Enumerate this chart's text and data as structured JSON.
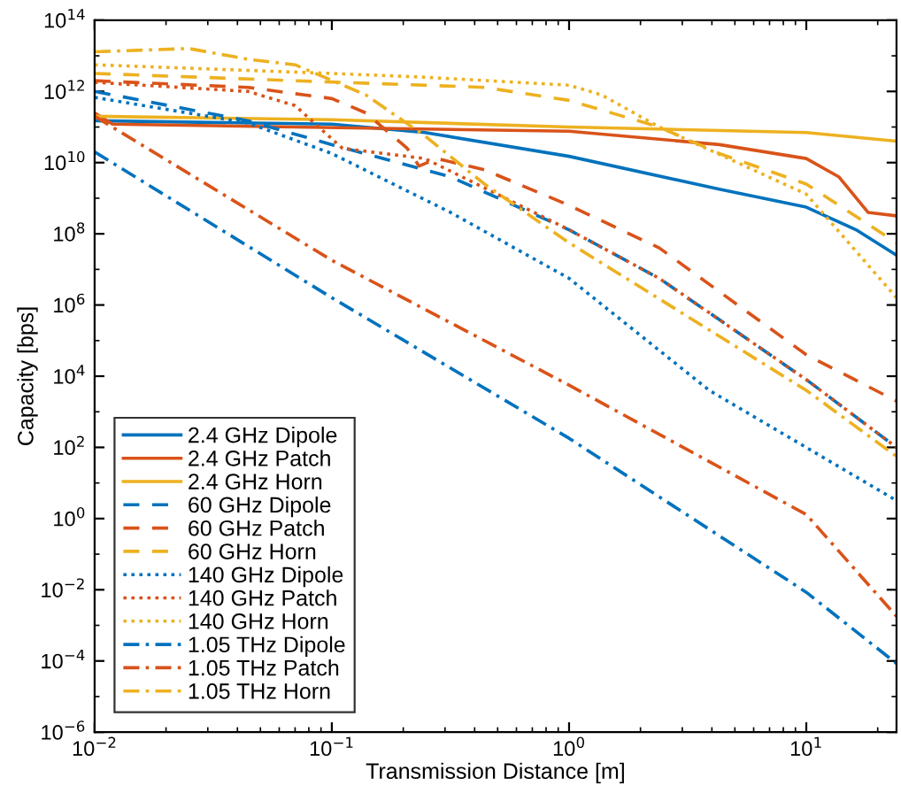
{
  "chart_data": {
    "type": "line",
    "xlabel": "Transmission Distance [m]",
    "ylabel": "Capacity [bps]",
    "log": "xy",
    "grid": false,
    "legend": "bottom left",
    "marker": "none",
    "xlim": [
      0.01,
      24
    ],
    "ylim": [
      1e-06,
      100000000000000.0
    ],
    "xticks": [
      {
        "value": 0.01,
        "label": "10$^{−2}$"
      },
      {
        "value": 0.1,
        "label": "10$^{−1}$"
      },
      {
        "value": 1,
        "label": "10$^{0}$"
      },
      {
        "value": 10,
        "label": "10$^{1}$"
      }
    ],
    "yticks": [
      {
        "value": 1e-06,
        "label": "10$^{−6}$"
      },
      {
        "value": 0.0001,
        "label": "10$^{−4}$"
      },
      {
        "value": 0.01,
        "label": "10$^{−2}$"
      },
      {
        "value": 1,
        "label": "10$^{0}$"
      },
      {
        "value": 100,
        "label": "10$^{2}$"
      },
      {
        "value": 10000.0,
        "label": "10$^{4}$"
      },
      {
        "value": 1000000.0,
        "label": "10$^{6}$"
      },
      {
        "value": 100000000.0,
        "label": "10$^{8}$"
      },
      {
        "value": 10000000000.0,
        "label": "10$^{10}$"
      },
      {
        "value": 1000000000000.0,
        "label": "10$^{12}$"
      },
      {
        "value": 100000000000000.0,
        "label": "10$^{14}$"
      }
    ],
    "series": [
      {
        "name": "2.4 GHz Dipole",
        "color": "#0072bd",
        "line_style": "solid",
        "x": [
          0.01,
          0.1,
          0.247,
          1,
          4.3,
          10,
          16.2,
          24
        ],
        "values": [
          150000000000.0,
          120000000000.0,
          70000000000.0,
          15000000000.0,
          1800000000.0,
          560000000.0,
          130000000.0,
          25000000.0
        ]
      },
      {
        "name": "2.4 GHz Patch",
        "color": "#d95319",
        "line_style": "solid",
        "x": [
          0.01,
          0.0119,
          1,
          4.3,
          10,
          13.7,
          18.2,
          24
        ],
        "values": [
          250000000000.0,
          120000000000.0,
          76000000000.0,
          32000000000.0,
          13000000000.0,
          4000000000.0,
          400000000.0,
          320000000.0
        ]
      },
      {
        "name": "2.4 GHz Horn",
        "color": "#edb120",
        "line_style": "solid",
        "x": [
          0.01,
          0.1,
          1,
          10,
          24
        ],
        "values": [
          200000000000.0,
          160000000000.0,
          100000000000.0,
          70000000000.0,
          40000000000.0
        ]
      },
      {
        "name": "60 GHz Dipole",
        "color": "#0072bd",
        "line_style": "dashed",
        "x": [
          0.01,
          0.0443,
          0.1,
          0.316,
          1,
          2.4,
          10,
          24
        ],
        "values": [
          1000000000000.0,
          150000000000.0,
          32000000000.0,
          4000000000.0,
          130000000.0,
          5600000.0,
          8000.0,
          100
        ]
      },
      {
        "name": "60 GHz Patch",
        "color": "#d95319",
        "line_style": "dashed",
        "x": [
          0.01,
          0.0443,
          0.1,
          0.139,
          0.208,
          0.233,
          0.277,
          0.44,
          1,
          2.4,
          10,
          24
        ],
        "values": [
          2000000000000.0,
          1300000000000.0,
          630000000000.0,
          250000000000.0,
          25000000000.0,
          8000000000.0,
          13000000000.0,
          6300000000.0,
          630000000.0,
          40000000.0,
          40000.0,
          2000.0
        ]
      },
      {
        "name": "60 GHz Horn",
        "color": "#edb120",
        "line_style": "dashed",
        "x": [
          0.01,
          0.07,
          0.44,
          1,
          2.4,
          4.3,
          10,
          24
        ],
        "values": [
          3200000000000.0,
          2000000000000.0,
          1300000000000.0,
          560000000000.0,
          100000000000.0,
          18000000000.0,
          2500000000.0,
          56000000.0
        ]
      },
      {
        "name": "140 GHz Dipole",
        "color": "#0072bd",
        "line_style": "dotted",
        "x": [
          0.01,
          0.0443,
          0.1,
          0.316,
          1,
          3.9,
          24
        ],
        "values": [
          680000000000.0,
          130000000000.0,
          18000000000.0,
          400000000.0,
          5600000.0,
          4000.0,
          3.2
        ]
      },
      {
        "name": "140 GHz Patch",
        "color": "#d95319",
        "line_style": "dotted",
        "x": [
          0.01,
          0.0443,
          0.07,
          0.088,
          0.111,
          0.247,
          1,
          2.4,
          10,
          24
        ],
        "values": [
          1800000000000.0,
          1000000000000.0,
          400000000000.0,
          100000000000.0,
          25000000000.0,
          13000000000.0,
          130000000.0,
          5600000.0,
          8000.0,
          100
        ]
      },
      {
        "name": "140 GHz Horn",
        "color": "#edb120",
        "line_style": "dotted",
        "x": [
          0.01,
          0.1,
          0.247,
          1,
          1.37,
          2.4,
          10,
          24
        ],
        "values": [
          5600000000000.0,
          3200000000000.0,
          2500000000000.0,
          1500000000000.0,
          800000000000.0,
          100000000000.0,
          1300000000.0,
          1600000.0
        ]
      },
      {
        "name": "1.05 THz Dipole",
        "color": "#0072bd",
        "line_style": "dashdot",
        "x": [
          0.01,
          0.1,
          1,
          10,
          24
        ],
        "values": [
          20000000000.0,
          1600000.0,
          180,
          0.0085,
          8.5e-05
        ]
      },
      {
        "name": "1.05 THz Patch",
        "color": "#d95319",
        "line_style": "dashdot",
        "x": [
          0.01,
          0.1,
          1,
          10,
          24
        ],
        "values": [
          200000000000.0,
          18000000.0,
          5600.0,
          1.3,
          0.0018
        ]
      },
      {
        "name": "1.05 THz Horn",
        "color": "#edb120",
        "line_style": "dashdot",
        "x": [
          0.01,
          0.025,
          0.0443,
          0.07,
          0.139,
          0.247,
          0.44,
          1,
          10,
          24
        ],
        "values": [
          13000000000000.0,
          16000000000000.0,
          8000000000000.0,
          5600000000000.0,
          800000000000.0,
          56000000000.0,
          2500000000.0,
          56000000.0,
          4000.0,
          56
        ]
      }
    ]
  }
}
